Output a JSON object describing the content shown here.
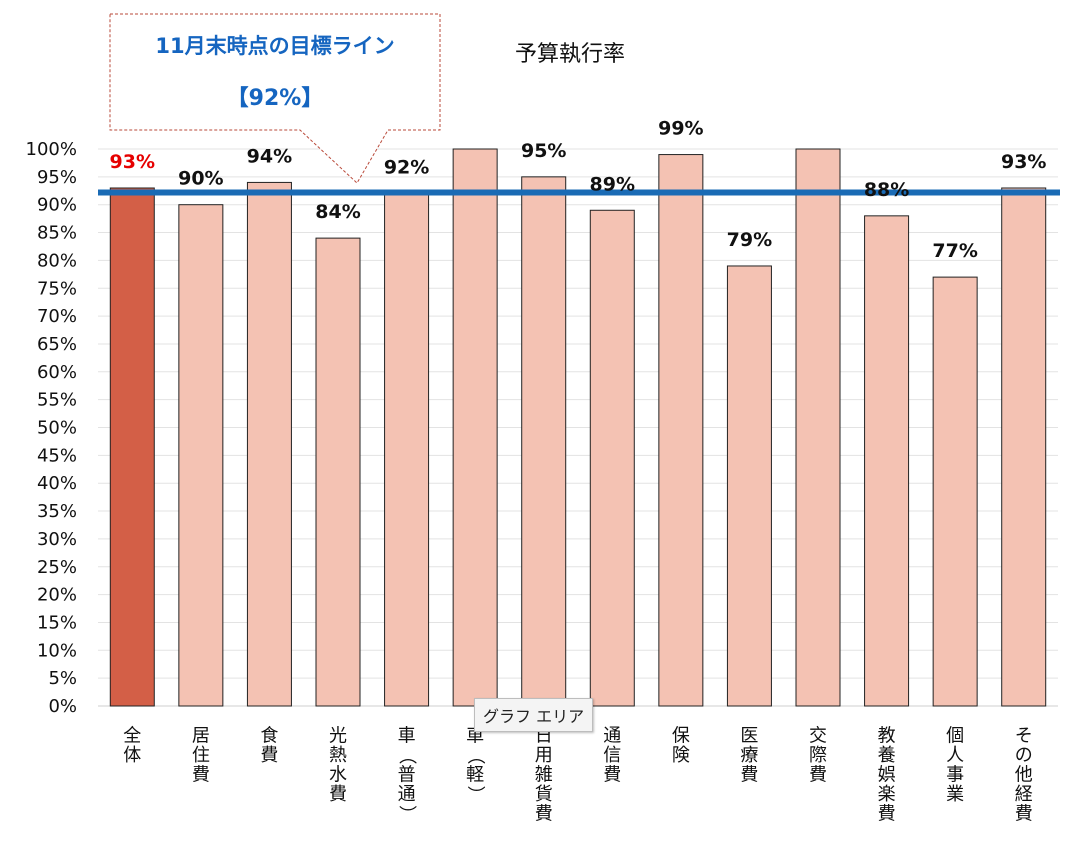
{
  "chart_data": {
    "type": "bar",
    "title": "予算執行率",
    "categories": [
      "全体",
      "居住費",
      "食費",
      "光熱水費",
      "車（普通）",
      "車（軽）",
      "日用雑貨費",
      "通信費",
      "保険",
      "医療費",
      "交際費",
      "教養娯楽費",
      "個人事業",
      "その他経費"
    ],
    "values": [
      93,
      90,
      94,
      84,
      92,
      101,
      95,
      89,
      99,
      79,
      101,
      88,
      77,
      93
    ],
    "data_labels": [
      "93%",
      "90%",
      "94%",
      "84%",
      "92%",
      "",
      "95%",
      "89%",
      "99%",
      "79%",
      "",
      "88%",
      "77%",
      "93%"
    ],
    "ylim": [
      0,
      100
    ],
    "yticks": [
      "0%",
      "5%",
      "10%",
      "15%",
      "20%",
      "25%",
      "30%",
      "35%",
      "40%",
      "45%",
      "50%",
      "55%",
      "60%",
      "65%",
      "70%",
      "75%",
      "80%",
      "85%",
      "90%",
      "95%",
      "100%"
    ],
    "target_value": 92,
    "grid": true,
    "legend": "none"
  },
  "callout": {
    "line1": "11月末時点の目標ライン",
    "line2": "【92%】"
  },
  "tooltip": "グラフ エリア",
  "colors": {
    "highlight_bar": "#d35f47",
    "bar": "#f4c2b3",
    "bar_stroke": "#222222",
    "target_line": "#1a6bb5",
    "callout_text": "#1565c0",
    "highlight_label": "#e60000",
    "label": "#111111"
  }
}
